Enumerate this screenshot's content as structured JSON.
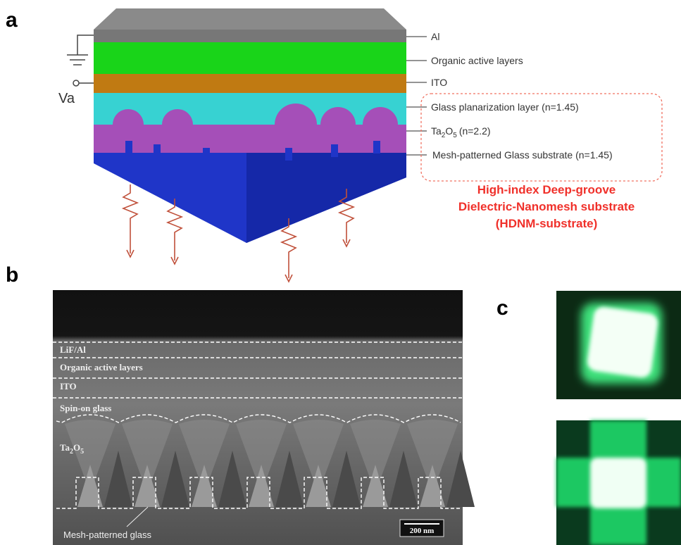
{
  "panel_labels": {
    "a": "a",
    "b": "b",
    "c": "c"
  },
  "panel_a": {
    "bias": "Va",
    "layers": [
      "Al",
      "Organic active layers",
      "ITO",
      "Glass planarization layer (n=1.45)",
      "Mesh-patterned Glass substrate (n=1.45)"
    ],
    "oxide_layer": [
      "Ta",
      "2",
      "O",
      "5",
      "(n=2.2)"
    ],
    "highlight": [
      "High-index Deep-groove",
      "Dielectric-Nanomesh substrate",
      "(HDNM-substrate)"
    ]
  },
  "panel_b": {
    "layers": [
      "LiF/Al",
      "Organic active layers",
      "ITO",
      "Spin-on glass"
    ],
    "oxide": [
      "Ta",
      "2",
      "O",
      "5"
    ],
    "substrate": "Mesh-patterned glass",
    "scale_bar": "200 nm"
  }
}
